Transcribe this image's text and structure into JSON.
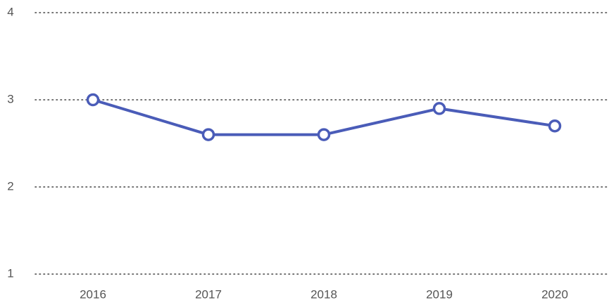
{
  "chart_data": {
    "type": "line",
    "categories": [
      "2016",
      "2017",
      "2018",
      "2019",
      "2020"
    ],
    "values": [
      3.0,
      2.6,
      2.6,
      2.9,
      2.7
    ],
    "color": "#4a5cb8",
    "ylim": [
      1,
      4
    ],
    "yticks": [
      1,
      2,
      3,
      4
    ],
    "grid": true
  }
}
